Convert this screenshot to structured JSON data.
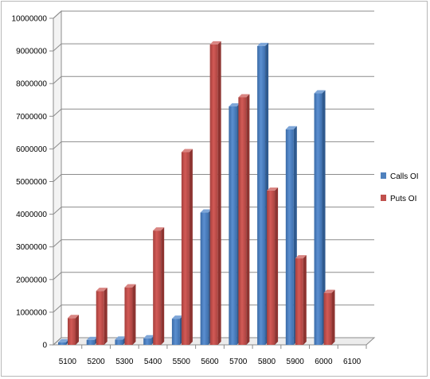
{
  "chart_data": {
    "type": "bar",
    "categories": [
      "5100",
      "5200",
      "5300",
      "5400",
      "5500",
      "5600",
      "5700",
      "5800",
      "5900",
      "6000",
      "6100"
    ],
    "series": [
      {
        "name": "Calls OI",
        "color": "#4f81bd",
        "values": [
          80000,
          150000,
          160000,
          200000,
          800000,
          4050000,
          7300000,
          9150000,
          6600000,
          7700000,
          0
        ]
      },
      {
        "name": "Puts OI",
        "color": "#c0504d",
        "values": [
          820000,
          1650000,
          1760000,
          3500000,
          5900000,
          9200000,
          7580000,
          4720000,
          2650000,
          1590000,
          0
        ]
      }
    ],
    "ylim": [
      0,
      10000000
    ],
    "yticks": [
      "0",
      "1000000",
      "2000000",
      "3000000",
      "4000000",
      "5000000",
      "6000000",
      "7000000",
      "8000000",
      "9000000",
      "10000000"
    ],
    "grid": true,
    "legend": "right"
  }
}
